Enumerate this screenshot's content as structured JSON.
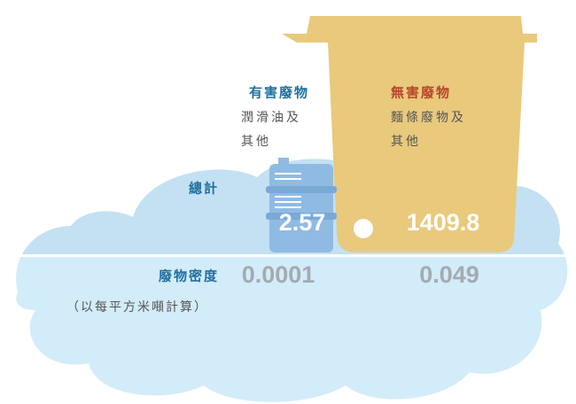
{
  "row_labels": {
    "total": "總計",
    "density": "廢物密度",
    "density_unit": "（以每平方米噸計算）"
  },
  "columns": [
    {
      "title": "有害廢物",
      "subtitle_lines": [
        "潤滑油及",
        "其他"
      ],
      "total": 2.57,
      "density": 0.0001
    },
    {
      "title": "無害廢物",
      "subtitle_lines": [
        "麵條廢物及",
        "其他"
      ],
      "total": 1409.8,
      "density": 0.049
    }
  ]
}
